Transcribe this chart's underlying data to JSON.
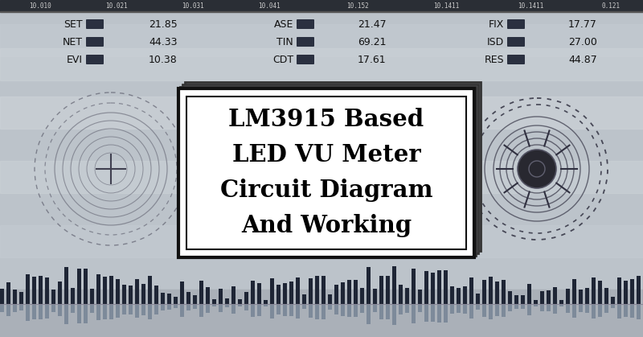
{
  "title_lines": [
    "LM3915 Based",
    "LED VU Meter",
    "Circuit Diagram",
    "And Working"
  ],
  "bg_color": "#b8bfc6",
  "top_bar_color": "#2a2e35",
  "legend_items": [
    {
      "label": "SET",
      "value": "21.85"
    },
    {
      "label": "NET",
      "value": "44.33"
    },
    {
      "label": "EVI",
      "value": "10.38"
    },
    {
      "label": "ASE",
      "value": "21.47"
    },
    {
      "label": "TIN",
      "value": "69.21"
    },
    {
      "label": "CDT",
      "value": "17.61"
    },
    {
      "label": "FIX",
      "value": "17.77"
    },
    {
      "label": "ISD",
      "value": "27.00"
    },
    {
      "label": "RES",
      "value": "44.87"
    }
  ],
  "dot_color": "#2a3040",
  "top_tick_labels": [
    "10.010",
    "10.021",
    "10.031",
    "10.041",
    "10.152",
    "10.1411",
    "10.1411",
    "0.121"
  ],
  "figsize": [
    8.0,
    4.19
  ],
  "dpi": 100
}
